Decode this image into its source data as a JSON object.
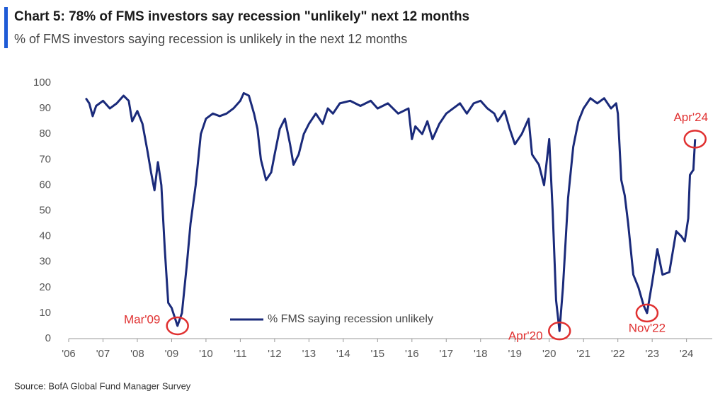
{
  "chart_data": {
    "type": "line",
    "title": "Chart 5: 78% of FMS investors say recession \"unlikely\" next 12 months",
    "subtitle": "% of FMS investors saying recession is unlikely in the next 12 months",
    "source": "Source: BofA Global Fund Manager Survey",
    "series": [
      {
        "name": "% FMS saying recession unlikely",
        "color": "#1a2a7a",
        "x": [
          2006.5,
          2006.6,
          2006.7,
          2006.8,
          2007.0,
          2007.2,
          2007.4,
          2007.6,
          2007.75,
          2007.85,
          2008.0,
          2008.15,
          2008.3,
          2008.4,
          2008.5,
          2008.6,
          2008.7,
          2008.8,
          2008.9,
          2009.0,
          2009.17,
          2009.3,
          2009.45,
          2009.55,
          2009.7,
          2009.85,
          2010.0,
          2010.2,
          2010.4,
          2010.6,
          2010.8,
          2011.0,
          2011.1,
          2011.25,
          2011.4,
          2011.5,
          2011.6,
          2011.75,
          2011.9,
          2012.0,
          2012.15,
          2012.3,
          2012.45,
          2012.55,
          2012.7,
          2012.85,
          2013.0,
          2013.2,
          2013.4,
          2013.55,
          2013.7,
          2013.9,
          2014.2,
          2014.5,
          2014.8,
          2015.0,
          2015.3,
          2015.6,
          2015.9,
          2016.0,
          2016.1,
          2016.3,
          2016.45,
          2016.6,
          2016.8,
          2017.0,
          2017.2,
          2017.4,
          2017.6,
          2017.8,
          2018.0,
          2018.2,
          2018.4,
          2018.5,
          2018.7,
          2018.85,
          2019.0,
          2019.2,
          2019.4,
          2019.5,
          2019.7,
          2019.85,
          2020.0,
          2020.1,
          2020.2,
          2020.3,
          2020.4,
          2020.55,
          2020.7,
          2020.85,
          2021.0,
          2021.2,
          2021.4,
          2021.6,
          2021.8,
          2021.95,
          2022.0,
          2022.1,
          2022.2,
          2022.3,
          2022.45,
          2022.6,
          2022.75,
          2022.85,
          2023.0,
          2023.15,
          2023.3,
          2023.5,
          2023.7,
          2023.85,
          2023.95,
          2024.05,
          2024.1,
          2024.2,
          2024.25
        ],
        "values": [
          94,
          92,
          87,
          91,
          93,
          90,
          92,
          95,
          93,
          85,
          89,
          84,
          73,
          65,
          58,
          69,
          60,
          35,
          14,
          12,
          5,
          10,
          30,
          45,
          60,
          80,
          86,
          88,
          87,
          88,
          90,
          93,
          96,
          95,
          88,
          82,
          70,
          62,
          65,
          72,
          82,
          86,
          76,
          68,
          72,
          80,
          84,
          88,
          84,
          90,
          88,
          92,
          93,
          91,
          93,
          90,
          92,
          88,
          90,
          78,
          83,
          80,
          85,
          78,
          84,
          88,
          90,
          92,
          88,
          92,
          93,
          90,
          88,
          85,
          89,
          82,
          76,
          80,
          86,
          72,
          68,
          60,
          78,
          50,
          15,
          3,
          20,
          55,
          75,
          85,
          90,
          94,
          92,
          94,
          90,
          92,
          88,
          62,
          56,
          45,
          25,
          20,
          13,
          10,
          22,
          35,
          25,
          26,
          42,
          40,
          38,
          47,
          64,
          66,
          78
        ]
      }
    ],
    "annotations": [
      {
        "text": "Mar'09",
        "x": 2009.17,
        "y": 5
      },
      {
        "text": "Apr'20",
        "x": 2020.3,
        "y": 3
      },
      {
        "text": "Nov'22",
        "x": 2022.85,
        "y": 10
      },
      {
        "text": "Apr'24",
        "x": 2024.25,
        "y": 78
      }
    ],
    "annotation_color": "#e03030",
    "xlim": [
      2006,
      2024.75
    ],
    "xticks": [
      {
        "value": 2006,
        "label": "'06"
      },
      {
        "value": 2007,
        "label": "'07"
      },
      {
        "value": 2008,
        "label": "'08"
      },
      {
        "value": 2009,
        "label": "'09"
      },
      {
        "value": 2010,
        "label": "'10"
      },
      {
        "value": 2011,
        "label": "'11"
      },
      {
        "value": 2012,
        "label": "'12"
      },
      {
        "value": 2013,
        "label": "'13"
      },
      {
        "value": 2014,
        "label": "'14"
      },
      {
        "value": 2015,
        "label": "'15"
      },
      {
        "value": 2016,
        "label": "'16"
      },
      {
        "value": 2017,
        "label": "'17"
      },
      {
        "value": 2018,
        "label": "'18"
      },
      {
        "value": 2019,
        "label": "'19"
      },
      {
        "value": 2020,
        "label": "'20"
      },
      {
        "value": 2021,
        "label": "'21"
      },
      {
        "value": 2022,
        "label": "'22"
      },
      {
        "value": 2023,
        "label": "'23"
      },
      {
        "value": 2024,
        "label": "'24"
      }
    ],
    "ylim": [
      0,
      100
    ],
    "yticks": [
      0,
      10,
      20,
      30,
      40,
      50,
      60,
      70,
      80,
      90,
      100
    ]
  }
}
